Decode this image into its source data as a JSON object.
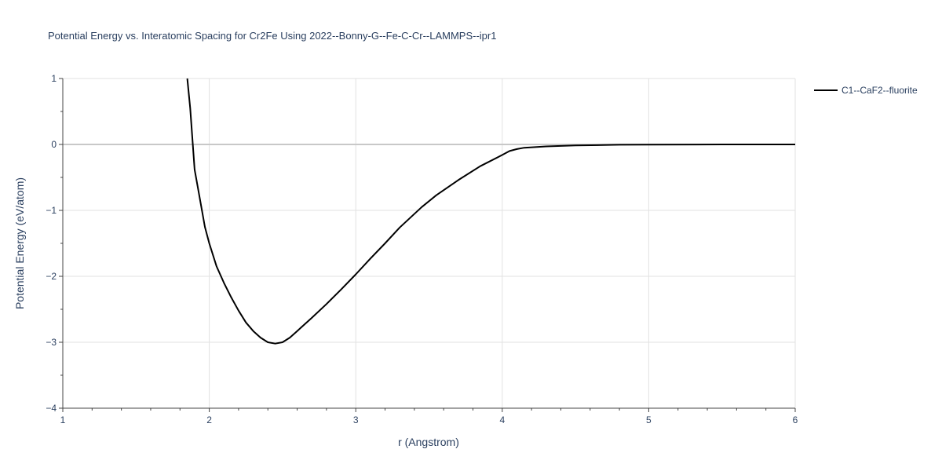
{
  "chart_data": {
    "type": "line",
    "title": "Potential Energy vs. Interatomic Spacing for Cr2Fe Using 2022--Bonny-G--Fe-C-Cr--LAMMPS--ipr1",
    "xlabel": "r (Angstrom)",
    "ylabel": "Potential Energy (eV/atom)",
    "xlim": [
      1,
      6
    ],
    "ylim": [
      -4,
      1
    ],
    "x_ticks": [
      1,
      2,
      3,
      4,
      5,
      6
    ],
    "x_tick_labels": [
      "1",
      "2",
      "3",
      "4",
      "5",
      "6"
    ],
    "y_ticks": [
      1,
      0,
      -1,
      -2,
      -3,
      -4
    ],
    "y_tick_labels": [
      "1",
      "0",
      "−1",
      "−2",
      "−3",
      "−4"
    ],
    "grid": true,
    "legend_position": "top-right",
    "series": [
      {
        "name": "C1--CaF2--fluorite",
        "color": "#000000",
        "x": [
          1.85,
          1.87,
          1.9,
          1.93,
          1.97,
          2.0,
          2.05,
          2.1,
          2.15,
          2.2,
          2.25,
          2.3,
          2.35,
          2.4,
          2.45,
          2.5,
          2.55,
          2.6,
          2.7,
          2.8,
          2.9,
          3.0,
          3.1,
          3.2,
          3.3,
          3.45,
          3.55,
          3.7,
          3.85,
          4.0,
          4.05,
          4.1,
          4.15,
          4.3,
          4.5,
          4.8,
          5.0,
          5.5,
          6.0
        ],
        "y": [
          1.0,
          0.55,
          -0.38,
          -0.75,
          -1.25,
          -1.5,
          -1.85,
          -2.1,
          -2.32,
          -2.52,
          -2.7,
          -2.83,
          -2.93,
          -3.0,
          -3.02,
          -3.0,
          -2.93,
          -2.83,
          -2.63,
          -2.42,
          -2.2,
          -1.97,
          -1.73,
          -1.5,
          -1.26,
          -0.95,
          -0.77,
          -0.54,
          -0.33,
          -0.16,
          -0.1,
          -0.07,
          -0.05,
          -0.03,
          -0.015,
          -0.005,
          -0.002,
          0.0,
          0.0
        ]
      }
    ]
  }
}
